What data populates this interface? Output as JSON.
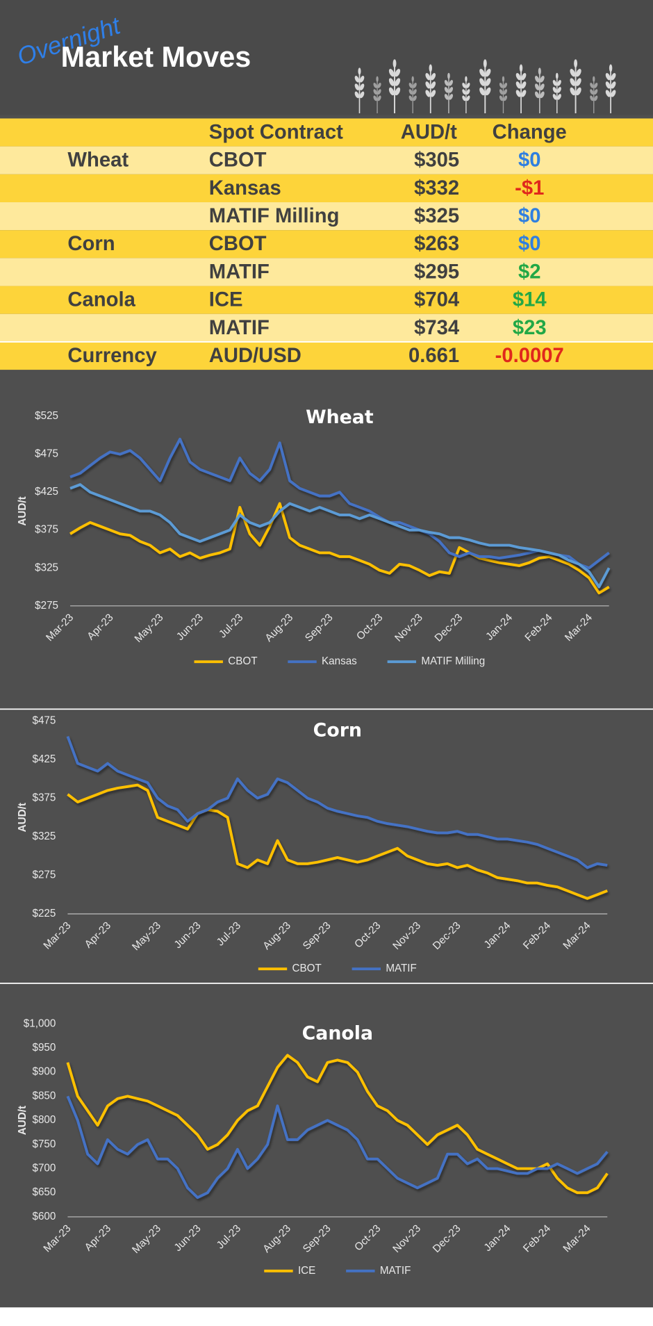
{
  "header": {
    "subtitle": "Overnight",
    "title": "Market Moves"
  },
  "table": {
    "header": {
      "contract": "Spot Contract",
      "price": "AUD/t",
      "change": "Change"
    },
    "rows": [
      {
        "group": "Wheat",
        "contract": "CBOT",
        "price": "$305",
        "change": "$0",
        "change_color": "#2f7fe0"
      },
      {
        "contract": "Kansas",
        "price": "$332",
        "change": "-$1",
        "change_color": "#e0281c"
      },
      {
        "contract": "MATIF Milling",
        "price": "$325",
        "change": "$0",
        "change_color": "#2f7fe0"
      },
      {
        "group": "Corn",
        "contract": "CBOT",
        "price": "$263",
        "change": "$0",
        "change_color": "#2f7fe0"
      },
      {
        "contract": "MATIF",
        "price": "$295",
        "change": "$2",
        "change_color": "#22a846"
      },
      {
        "group": "Canola",
        "contract": "ICE",
        "price": "$704",
        "change": "$14",
        "change_color": "#22a846"
      },
      {
        "contract": "MATIF",
        "price": "$734",
        "change": "$23",
        "change_color": "#22a846"
      },
      {
        "group": "Currency",
        "contract": "AUD/USD",
        "price": "0.661",
        "change": "-0.0007",
        "change_color": "#e0281c"
      }
    ]
  },
  "chart_data": [
    {
      "type": "line",
      "title": "Wheat",
      "y_label": "AUD/t",
      "grid": false,
      "legend": "bottom",
      "categories": [
        "Mar-23",
        null,
        null,
        null,
        "Apr-23",
        null,
        null,
        null,
        null,
        "May-23",
        null,
        null,
        null,
        "Jun-23",
        null,
        null,
        null,
        "Jul-23",
        null,
        null,
        null,
        null,
        "Aug-23",
        null,
        null,
        null,
        "Sep-23",
        null,
        null,
        null,
        null,
        "Oct-23",
        null,
        null,
        null,
        "Nov-23",
        null,
        null,
        null,
        "Dec-23",
        null,
        null,
        null,
        null,
        "Jan-24",
        null,
        null,
        null,
        "Feb-24",
        null,
        null,
        null,
        "Mar-24",
        null,
        null
      ],
      "ylim": [
        275,
        525
      ],
      "yticks": [
        {
          "value": 275,
          "label": "$275"
        },
        {
          "value": 325,
          "label": "$325"
        },
        {
          "value": 375,
          "label": "$375"
        },
        {
          "value": 425,
          "label": "$425"
        },
        {
          "value": 475,
          "label": "$475"
        },
        {
          "value": 525,
          "label": "$525"
        }
      ],
      "series": [
        {
          "name": "CBOT",
          "color": "#ffc000",
          "values": [
            370,
            378,
            385,
            380,
            375,
            370,
            368,
            360,
            355,
            345,
            350,
            340,
            345,
            338,
            342,
            345,
            350,
            405,
            370,
            355,
            380,
            410,
            365,
            355,
            350,
            345,
            345,
            340,
            340,
            335,
            330,
            322,
            318,
            330,
            328,
            322,
            315,
            320,
            318,
            352,
            345,
            338,
            335,
            332,
            330,
            328,
            332,
            338,
            340,
            335,
            330,
            322,
            312,
            292,
            300
          ]
        },
        {
          "name": "Kansas",
          "color": "#4472c4",
          "values": [
            445,
            450,
            460,
            470,
            478,
            475,
            480,
            470,
            455,
            440,
            470,
            495,
            465,
            455,
            450,
            445,
            440,
            470,
            450,
            440,
            455,
            490,
            440,
            430,
            425,
            420,
            420,
            425,
            410,
            405,
            400,
            392,
            385,
            385,
            380,
            375,
            370,
            360,
            345,
            340,
            345,
            340,
            340,
            338,
            340,
            342,
            345,
            348,
            345,
            342,
            340,
            330,
            325,
            335,
            345
          ]
        },
        {
          "name": "MATIF Milling",
          "color": "#5b9bd5",
          "values": [
            430,
            435,
            425,
            420,
            415,
            410,
            405,
            400,
            400,
            395,
            385,
            370,
            365,
            360,
            365,
            370,
            375,
            395,
            385,
            380,
            385,
            400,
            410,
            405,
            400,
            405,
            400,
            395,
            395,
            390,
            395,
            390,
            385,
            380,
            375,
            375,
            372,
            370,
            365,
            365,
            362,
            358,
            355,
            355,
            355,
            352,
            350,
            348,
            345,
            342,
            335,
            330,
            320,
            300,
            325
          ]
        }
      ]
    },
    {
      "type": "line",
      "title": "Corn",
      "y_label": "AUD/t",
      "grid": false,
      "legend": "bottom",
      "categories": [
        "Mar-23",
        null,
        null,
        null,
        "Apr-23",
        null,
        null,
        null,
        null,
        "May-23",
        null,
        null,
        null,
        "Jun-23",
        null,
        null,
        null,
        "Jul-23",
        null,
        null,
        null,
        null,
        "Aug-23",
        null,
        null,
        null,
        "Sep-23",
        null,
        null,
        null,
        null,
        "Oct-23",
        null,
        null,
        null,
        "Nov-23",
        null,
        null,
        null,
        "Dec-23",
        null,
        null,
        null,
        null,
        "Jan-24",
        null,
        null,
        null,
        "Feb-24",
        null,
        null,
        null,
        "Mar-24",
        null,
        null
      ],
      "ylim": [
        225,
        475
      ],
      "yticks": [
        {
          "value": 225,
          "label": "$225"
        },
        {
          "value": 275,
          "label": "$275"
        },
        {
          "value": 325,
          "label": "$325"
        },
        {
          "value": 375,
          "label": "$375"
        },
        {
          "value": 425,
          "label": "$425"
        },
        {
          "value": 475,
          "label": "$475"
        }
      ],
      "series": [
        {
          "name": "CBOT",
          "color": "#ffc000",
          "values": [
            380,
            370,
            375,
            380,
            385,
            388,
            390,
            392,
            385,
            350,
            345,
            340,
            335,
            355,
            360,
            358,
            350,
            290,
            285,
            295,
            290,
            320,
            295,
            290,
            290,
            292,
            295,
            298,
            295,
            292,
            295,
            300,
            305,
            310,
            300,
            295,
            290,
            288,
            290,
            285,
            288,
            282,
            278,
            272,
            270,
            268,
            265,
            265,
            262,
            260,
            255,
            250,
            245,
            250,
            255
          ]
        },
        {
          "name": "MATIF",
          "color": "#4472c4",
          "values": [
            455,
            420,
            415,
            410,
            420,
            410,
            405,
            400,
            395,
            375,
            365,
            360,
            345,
            355,
            360,
            370,
            375,
            400,
            385,
            375,
            380,
            400,
            395,
            385,
            375,
            370,
            362,
            358,
            355,
            352,
            350,
            345,
            342,
            340,
            338,
            335,
            332,
            330,
            330,
            332,
            328,
            328,
            325,
            322,
            322,
            320,
            318,
            315,
            310,
            305,
            300,
            295,
            285,
            290,
            288
          ]
        }
      ]
    },
    {
      "type": "line",
      "title": "Canola",
      "y_label": "AUD/t",
      "grid": false,
      "legend": "bottom",
      "categories": [
        "Mar-23",
        null,
        null,
        null,
        "Apr-23",
        null,
        null,
        null,
        null,
        "May-23",
        null,
        null,
        null,
        "Jun-23",
        null,
        null,
        null,
        "Jul-23",
        null,
        null,
        null,
        null,
        "Aug-23",
        null,
        null,
        null,
        "Sep-23",
        null,
        null,
        null,
        null,
        "Oct-23",
        null,
        null,
        null,
        "Nov-23",
        null,
        null,
        null,
        "Dec-23",
        null,
        null,
        null,
        null,
        "Jan-24",
        null,
        null,
        null,
        "Feb-24",
        null,
        null,
        null,
        "Mar-24",
        null,
        null
      ],
      "ylim": [
        600,
        1000
      ],
      "yticks": [
        {
          "value": 600,
          "label": "$600"
        },
        {
          "value": 650,
          "label": "$650"
        },
        {
          "value": 700,
          "label": "$700"
        },
        {
          "value": 750,
          "label": "$750"
        },
        {
          "value": 800,
          "label": "$800"
        },
        {
          "value": 850,
          "label": "$850"
        },
        {
          "value": 900,
          "label": "$900"
        },
        {
          "value": 950,
          "label": "$950"
        },
        {
          "value": 1000,
          "label": "$1,000"
        }
      ],
      "series": [
        {
          "name": "ICE",
          "color": "#ffc000",
          "values": [
            920,
            850,
            820,
            790,
            830,
            845,
            850,
            845,
            840,
            830,
            820,
            810,
            790,
            770,
            740,
            750,
            770,
            800,
            820,
            830,
            870,
            910,
            935,
            920,
            890,
            880,
            920,
            925,
            920,
            900,
            860,
            830,
            820,
            800,
            790,
            770,
            750,
            770,
            780,
            790,
            770,
            740,
            730,
            720,
            710,
            700,
            700,
            700,
            710,
            680,
            660,
            650,
            650,
            660,
            690
          ]
        },
        {
          "name": "MATIF",
          "color": "#4472c4",
          "values": [
            850,
            800,
            730,
            710,
            760,
            740,
            730,
            750,
            760,
            720,
            720,
            700,
            660,
            640,
            650,
            680,
            700,
            740,
            700,
            720,
            750,
            830,
            760,
            760,
            780,
            790,
            800,
            790,
            780,
            760,
            720,
            720,
            700,
            680,
            670,
            660,
            670,
            680,
            730,
            730,
            710,
            720,
            700,
            700,
            695,
            690,
            690,
            700,
            700,
            710,
            700,
            690,
            700,
            710,
            735
          ]
        }
      ]
    }
  ]
}
